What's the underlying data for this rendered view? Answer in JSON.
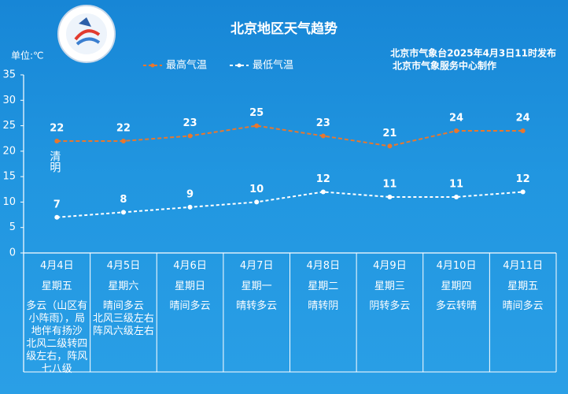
{
  "chart_data": {
    "type": "line",
    "title": "北京地区天气趋势",
    "source_lines": [
      "北京市气象台2025年4月3日11时发布",
      "北京市气象服务中心制作"
    ],
    "unit_label": "单位:℃",
    "annotation": "清明",
    "categories": [
      "4月4日",
      "4月5日",
      "4月6日",
      "4月7日",
      "4月8日",
      "4月9日",
      "4月10日",
      "4月11日"
    ],
    "weekdays": [
      "星期五",
      "星期六",
      "星期日",
      "星期一",
      "星期二",
      "星期三",
      "星期四",
      "星期五"
    ],
    "weather": [
      "多云（山区有小阵雨），局地伴有扬沙\n北风二级转四级左右，阵风七八级",
      "晴间多云\n北风三级左右\n阵风六级左右",
      "晴间多云",
      "晴转多云",
      "晴转阴",
      "阴转多云",
      "多云转晴",
      "晴间多云"
    ],
    "series": [
      {
        "name": "最高气温",
        "color": "#e8772e",
        "values": [
          22,
          22,
          23,
          25,
          23,
          21,
          24,
          24
        ]
      },
      {
        "name": "最低气温",
        "color": "#ffffff",
        "values": [
          7,
          8,
          9,
          10,
          12,
          11,
          11,
          12
        ]
      }
    ],
    "ylim": [
      0,
      35
    ],
    "yticks": [
      0,
      5,
      10,
      15,
      20,
      25,
      30,
      35
    ],
    "grid": false
  }
}
